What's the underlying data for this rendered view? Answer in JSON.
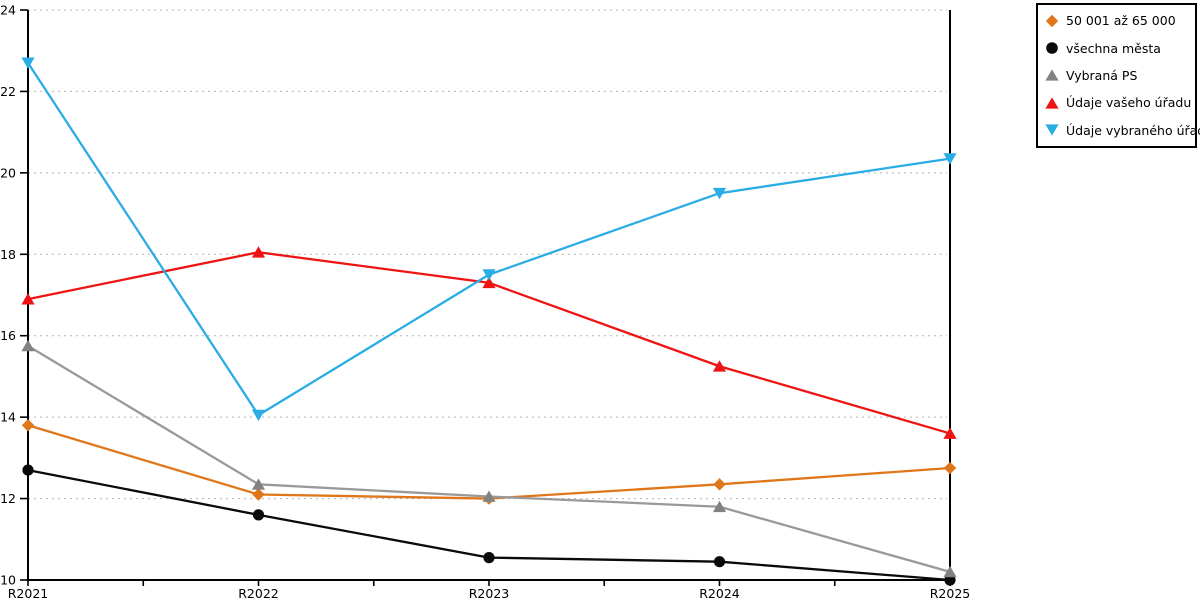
{
  "chart_data": {
    "type": "line",
    "title": "",
    "xlabel": "",
    "ylabel": "",
    "categories": [
      "R2021",
      "R2022",
      "R2023",
      "R2024",
      "R2025"
    ],
    "series": [
      {
        "name": "50 001 až 65 000",
        "marker": "diamond",
        "color": "#e0761a",
        "values": [
          13.8,
          12.1,
          12.0,
          12.35,
          12.75
        ]
      },
      {
        "name": "všechna města",
        "marker": "circle",
        "color": "#0a0a0a",
        "values": [
          12.7,
          11.6,
          10.55,
          10.45,
          10.0
        ]
      },
      {
        "name": "Vybraná PS",
        "marker": "triangle-up",
        "color": "#999999",
        "marker_color": "#828282",
        "values": [
          15.75,
          12.35,
          12.05,
          11.8,
          10.2
        ]
      },
      {
        "name": "Údaje vašeho úřadu",
        "marker": "triangle-up",
        "color": "#ee1414",
        "values": [
          16.9,
          18.05,
          17.3,
          15.25,
          13.6
        ]
      },
      {
        "name": "Údaje vybraného úřadu",
        "marker": "triangle-down",
        "color": "#2aace4",
        "values": [
          22.7,
          14.05,
          17.5,
          19.5,
          20.35
        ]
      }
    ],
    "ylim": [
      10,
      24
    ],
    "ytick_step": 2,
    "yticks": [
      10,
      12,
      14,
      16,
      18,
      20,
      22,
      24
    ],
    "grid": "horizontal-dotted",
    "grid_color": "#b3b3b3",
    "axis_color": "#000000",
    "legend_position": "top-right-outside",
    "x_minor_ticks_between_categories": true
  }
}
